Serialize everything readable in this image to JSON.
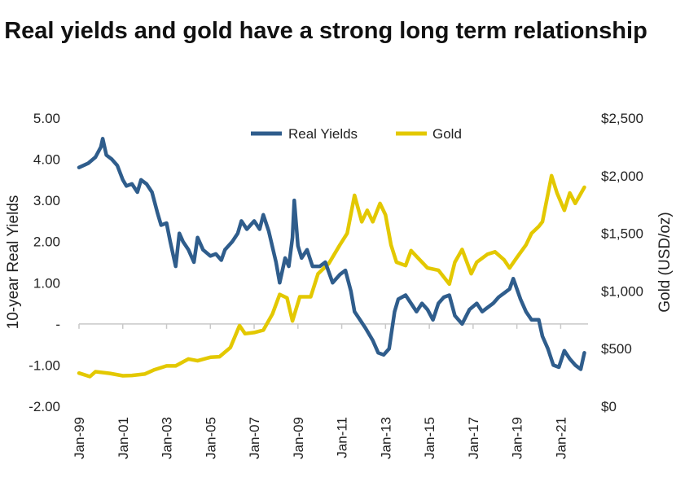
{
  "chart_data": {
    "type": "line",
    "title": "Real yields and gold have a strong long term relationship",
    "ylabel": "10-year Real Yields",
    "y2label": "Gold (USD/oz)",
    "ylim": [
      -2.0,
      5.0
    ],
    "y2lim": [
      0,
      2500
    ],
    "xlim": [
      "1999-01",
      "2022-04"
    ],
    "yticks": [
      "5.00",
      "4.00",
      "3.00",
      "2.00",
      "1.00",
      "-",
      "-1.00",
      "-2.00"
    ],
    "y2ticks": [
      "$2,500",
      "$2,000",
      "$1,500",
      "$1,000",
      "$500",
      "$0"
    ],
    "xticks": [
      "Jan-99",
      "Jan-01",
      "Jan-03",
      "Jan-05",
      "Jan-07",
      "Jan-09",
      "Jan-11",
      "Jan-13",
      "Jan-15",
      "Jan-17",
      "Jan-19",
      "Jan-21"
    ],
    "legend_position": "top",
    "grid": false,
    "series": [
      {
        "name": "Real Yields",
        "axis": "left",
        "color": "#2f5d8c",
        "points": [
          [
            "1999-01",
            3.8
          ],
          [
            "1999-06",
            3.9
          ],
          [
            "1999-10",
            4.05
          ],
          [
            "2000-01",
            4.3
          ],
          [
            "2000-02",
            4.5
          ],
          [
            "2000-04",
            4.1
          ],
          [
            "2000-07",
            4.0
          ],
          [
            "2000-10",
            3.85
          ],
          [
            "2001-01",
            3.5
          ],
          [
            "2001-03",
            3.35
          ],
          [
            "2001-06",
            3.4
          ],
          [
            "2001-09",
            3.2
          ],
          [
            "2001-11",
            3.5
          ],
          [
            "2002-02",
            3.4
          ],
          [
            "2002-05",
            3.2
          ],
          [
            "2002-08",
            2.7
          ],
          [
            "2002-10",
            2.4
          ],
          [
            "2003-01",
            2.45
          ],
          [
            "2003-03",
            2.0
          ],
          [
            "2003-06",
            1.4
          ],
          [
            "2003-08",
            2.2
          ],
          [
            "2003-10",
            2.0
          ],
          [
            "2004-01",
            1.8
          ],
          [
            "2004-04",
            1.5
          ],
          [
            "2004-06",
            2.1
          ],
          [
            "2004-09",
            1.8
          ],
          [
            "2005-01",
            1.65
          ],
          [
            "2005-04",
            1.7
          ],
          [
            "2005-07",
            1.55
          ],
          [
            "2005-09",
            1.8
          ],
          [
            "2006-01",
            2.0
          ],
          [
            "2006-04",
            2.2
          ],
          [
            "2006-06",
            2.5
          ],
          [
            "2006-09",
            2.3
          ],
          [
            "2007-01",
            2.5
          ],
          [
            "2007-04",
            2.3
          ],
          [
            "2007-06",
            2.65
          ],
          [
            "2007-09",
            2.25
          ],
          [
            "2008-01",
            1.5
          ],
          [
            "2008-03",
            1.0
          ],
          [
            "2008-06",
            1.6
          ],
          [
            "2008-08",
            1.4
          ],
          [
            "2008-10",
            2.1
          ],
          [
            "2008-11",
            3.0
          ],
          [
            "2009-01",
            1.9
          ],
          [
            "2009-03",
            1.6
          ],
          [
            "2009-06",
            1.8
          ],
          [
            "2009-09",
            1.4
          ],
          [
            "2010-01",
            1.4
          ],
          [
            "2010-04",
            1.5
          ],
          [
            "2010-08",
            1.0
          ],
          [
            "2010-12",
            1.2
          ],
          [
            "2011-03",
            1.3
          ],
          [
            "2011-06",
            0.8
          ],
          [
            "2011-08",
            0.3
          ],
          [
            "2011-11",
            0.1
          ],
          [
            "2012-02",
            -0.1
          ],
          [
            "2012-06",
            -0.4
          ],
          [
            "2012-09",
            -0.7
          ],
          [
            "2012-12",
            -0.75
          ],
          [
            "2013-03",
            -0.6
          ],
          [
            "2013-06",
            0.3
          ],
          [
            "2013-08",
            0.6
          ],
          [
            "2013-12",
            0.7
          ],
          [
            "2014-03",
            0.5
          ],
          [
            "2014-06",
            0.3
          ],
          [
            "2014-09",
            0.5
          ],
          [
            "2014-12",
            0.35
          ],
          [
            "2015-03",
            0.1
          ],
          [
            "2015-06",
            0.5
          ],
          [
            "2015-09",
            0.65
          ],
          [
            "2015-12",
            0.7
          ],
          [
            "2016-03",
            0.2
          ],
          [
            "2016-07",
            0.0
          ],
          [
            "2016-11",
            0.35
          ],
          [
            "2017-03",
            0.5
          ],
          [
            "2017-06",
            0.3
          ],
          [
            "2017-09",
            0.4
          ],
          [
            "2017-12",
            0.5
          ],
          [
            "2018-03",
            0.65
          ],
          [
            "2018-06",
            0.75
          ],
          [
            "2018-09",
            0.85
          ],
          [
            "2018-11",
            1.1
          ],
          [
            "2019-03",
            0.6
          ],
          [
            "2019-06",
            0.3
          ],
          [
            "2019-09",
            0.1
          ],
          [
            "2020-01",
            0.1
          ],
          [
            "2020-03",
            -0.3
          ],
          [
            "2020-06",
            -0.6
          ],
          [
            "2020-09",
            -1.0
          ],
          [
            "2020-12",
            -1.05
          ],
          [
            "2021-03",
            -0.65
          ],
          [
            "2021-06",
            -0.85
          ],
          [
            "2021-09",
            -1.0
          ],
          [
            "2021-12",
            -1.1
          ],
          [
            "2022-02",
            -0.7
          ]
        ]
      },
      {
        "name": "Gold",
        "axis": "right",
        "color": "#e3c800",
        "points": [
          [
            "1999-01",
            288
          ],
          [
            "1999-07",
            258
          ],
          [
            "1999-10",
            300
          ],
          [
            "2000-06",
            285
          ],
          [
            "2001-01",
            265
          ],
          [
            "2001-06",
            268
          ],
          [
            "2002-01",
            280
          ],
          [
            "2002-06",
            315
          ],
          [
            "2003-01",
            350
          ],
          [
            "2003-06",
            350
          ],
          [
            "2004-01",
            410
          ],
          [
            "2004-06",
            395
          ],
          [
            "2005-01",
            425
          ],
          [
            "2005-06",
            430
          ],
          [
            "2005-12",
            510
          ],
          [
            "2006-05",
            700
          ],
          [
            "2006-08",
            630
          ],
          [
            "2007-01",
            640
          ],
          [
            "2007-06",
            660
          ],
          [
            "2007-11",
            800
          ],
          [
            "2008-03",
            970
          ],
          [
            "2008-07",
            940
          ],
          [
            "2008-10",
            740
          ],
          [
            "2009-02",
            950
          ],
          [
            "2009-08",
            950
          ],
          [
            "2009-12",
            1150
          ],
          [
            "2010-06",
            1240
          ],
          [
            "2010-12",
            1400
          ],
          [
            "2011-04",
            1500
          ],
          [
            "2011-08",
            1830
          ],
          [
            "2011-12",
            1600
          ],
          [
            "2012-03",
            1700
          ],
          [
            "2012-06",
            1600
          ],
          [
            "2012-10",
            1760
          ],
          [
            "2013-01",
            1660
          ],
          [
            "2013-04",
            1400
          ],
          [
            "2013-07",
            1250
          ],
          [
            "2013-12",
            1220
          ],
          [
            "2014-03",
            1350
          ],
          [
            "2014-06",
            1300
          ],
          [
            "2014-12",
            1200
          ],
          [
            "2015-06",
            1180
          ],
          [
            "2015-12",
            1060
          ],
          [
            "2016-03",
            1250
          ],
          [
            "2016-07",
            1360
          ],
          [
            "2016-12",
            1150
          ],
          [
            "2017-03",
            1250
          ],
          [
            "2017-09",
            1320
          ],
          [
            "2018-01",
            1340
          ],
          [
            "2018-06",
            1270
          ],
          [
            "2018-09",
            1200
          ],
          [
            "2019-01",
            1290
          ],
          [
            "2019-06",
            1400
          ],
          [
            "2019-09",
            1500
          ],
          [
            "2020-01",
            1560
          ],
          [
            "2020-03",
            1600
          ],
          [
            "2020-08",
            2000
          ],
          [
            "2020-11",
            1850
          ],
          [
            "2021-03",
            1700
          ],
          [
            "2021-06",
            1850
          ],
          [
            "2021-09",
            1760
          ],
          [
            "2022-02",
            1900
          ]
        ]
      }
    ]
  }
}
